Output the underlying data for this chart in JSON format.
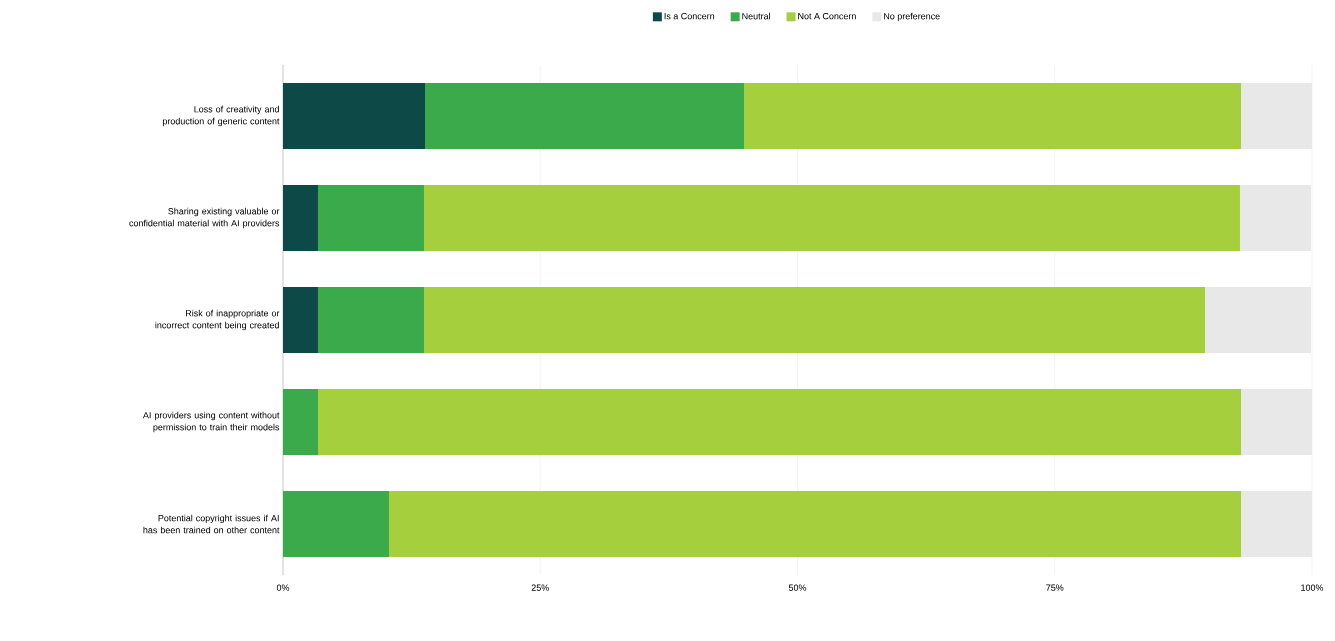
{
  "chart_data": {
    "type": "bar",
    "orientation": "horizontal",
    "stacked": true,
    "categories": [
      "Loss of creativity and production of generic content",
      "Sharing existing valuable or confidential material with AI providers",
      "Risk of inappropriate or incorrect content being created",
      "AI providers using content without permission to train their models",
      "Potential copyright issues if AI has been trained on other content"
    ],
    "series": [
      {
        "name": "Is a Concern",
        "color": "#0d4a47",
        "values": [
          13.8,
          3.4,
          3.4,
          0,
          0
        ]
      },
      {
        "name": "Neutral",
        "color": "#3aaa4a",
        "values": [
          31.0,
          10.3,
          10.3,
          3.4,
          10.3
        ]
      },
      {
        "name": "Not A Concern",
        "color": "#a6cf3e",
        "values": [
          48.3,
          79.3,
          75.9,
          89.7,
          82.8
        ]
      },
      {
        "name": "No preference",
        "color": "#e8e8e8",
        "values": [
          6.9,
          6.9,
          10.3,
          6.9,
          6.9
        ]
      }
    ],
    "xlim": [
      0,
      100
    ],
    "xticks": [
      {
        "value": 0,
        "label": "0%"
      },
      {
        "value": 25,
        "label": "25%"
      },
      {
        "value": 50,
        "label": "50%"
      },
      {
        "value": 75,
        "label": "75%"
      },
      {
        "value": 100,
        "label": "100%"
      }
    ],
    "grid": "x",
    "legend": "top"
  }
}
